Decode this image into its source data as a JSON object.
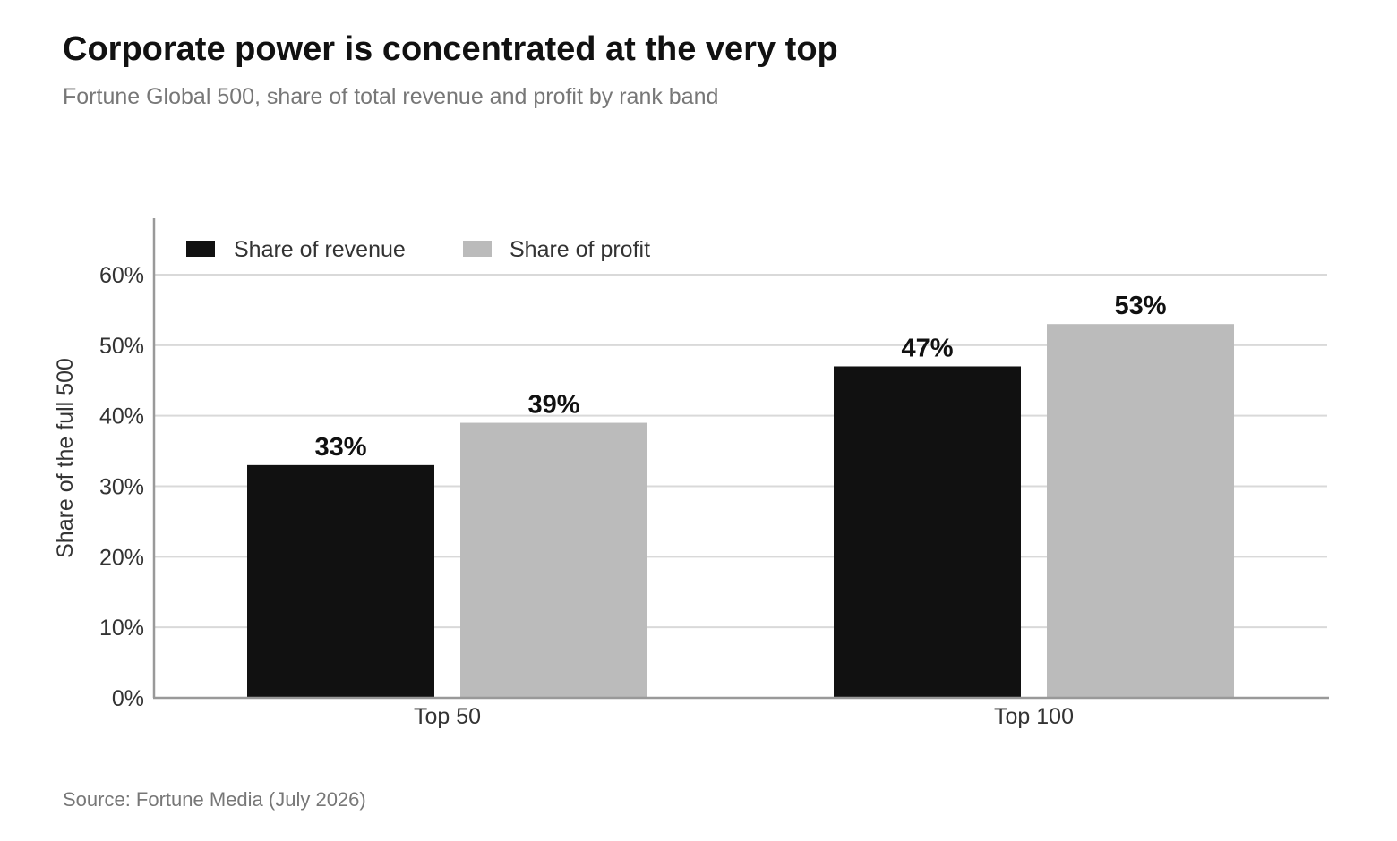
{
  "header": {
    "title": "Corporate power is concentrated at the very top",
    "subtitle": "Fortune Global 500, share of total revenue and profit by rank band"
  },
  "footer": {
    "source": "Source: Fortune Media (July 2026)"
  },
  "chart_data": {
    "type": "bar",
    "title": "Corporate power is concentrated at the very top",
    "subtitle": "Fortune Global 500, share of total revenue and profit by rank band",
    "xlabel": "",
    "ylabel": "Share of the full 500",
    "categories": [
      "Top 50",
      "Top 100"
    ],
    "series": [
      {
        "name": "Share of revenue",
        "values": [
          33,
          47
        ],
        "color": "#111111"
      },
      {
        "name": "Share of profit",
        "values": [
          39,
          53
        ],
        "color": "#bbbbbb"
      }
    ],
    "value_labels": [
      [
        "33%",
        "47%"
      ],
      [
        "39%",
        "53%"
      ]
    ],
    "ylim": [
      0,
      60
    ],
    "yticks": [
      0,
      10,
      20,
      30,
      40,
      50,
      60
    ],
    "ytick_labels": [
      "0%",
      "10%",
      "20%",
      "30%",
      "40%",
      "50%",
      "60%"
    ],
    "grid": true,
    "legend_position": "top-left"
  }
}
